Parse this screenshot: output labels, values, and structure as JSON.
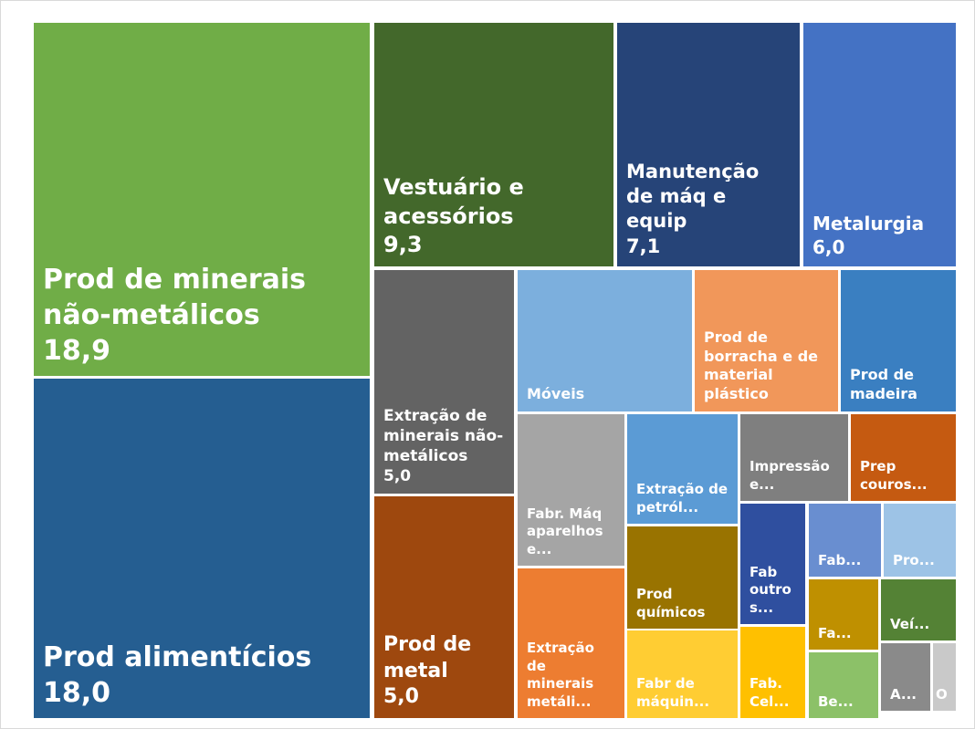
{
  "chart_data": {
    "type": "treemap",
    "categories": [
      "Prod de minerais não-metálicos",
      "Prod alimentícios",
      "Vestuário e acessórios",
      "Manutenção de máq e equip",
      "Metalurgia",
      "Extração de minerais não-metálicos",
      "Prod de metal",
      "Móveis",
      "Prod de borracha e de material plástico",
      "Prod de madeira",
      "Fabr. Máq aparelhos e...",
      "Extração de minerais metáli...",
      "Extração de petról...",
      "Prod químicos",
      "Fabr de máquin...",
      "Impressão e...",
      "Prep couros...",
      "Fab outros...",
      "Fab. Cel...",
      "Fab...",
      "Pro...",
      "Fa...",
      "Veí...",
      "Be...",
      "A...",
      "O"
    ],
    "values": [
      18.9,
      18.0,
      9.3,
      7.1,
      6.0,
      5.0,
      5.0,
      3.9,
      3.2,
      2.6,
      2.6,
      2.5,
      1.9,
      1.8,
      1.5,
      1.5,
      1.4,
      1.2,
      0.9,
      0.8,
      0.8,
      0.8,
      0.7,
      0.7,
      0.5,
      0.2
    ],
    "value_labels": [
      "18,9",
      "18,0",
      "9,3",
      "7,1",
      "6,0",
      "5,0",
      "5,0",
      null,
      null,
      null,
      null,
      null,
      null,
      null,
      null,
      null,
      null,
      null,
      null,
      null,
      null,
      null,
      null,
      null,
      null,
      null
    ],
    "colors": [
      "#70ad47",
      "#255e91",
      "#43682b",
      "#264478",
      "#4472c4",
      "#636363",
      "#9e480e",
      "#7cafdd",
      "#f1975a",
      "#3a7fc1",
      "#a5a5a5",
      "#ed7d31",
      "#5b9bd5",
      "#997300",
      "#ffcd33",
      "#7f7f7f",
      "#c55a11",
      "#2f4f9f",
      "#ffc000",
      "#698ed0",
      "#9dc3e6",
      "#bf9000",
      "#548235",
      "#8cc168",
      "#8a8a8a",
      "#c9c9c9"
    ]
  }
}
